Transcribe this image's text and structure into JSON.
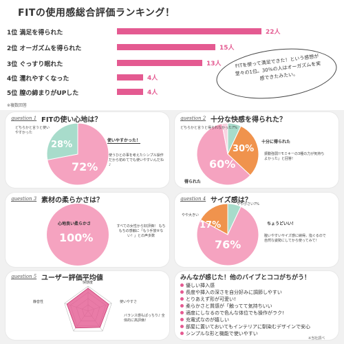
{
  "title": "FITの使用感総合評価ランキング！",
  "ranking": [
    {
      "label": "1位  満足を得られた",
      "value": "22人",
      "count": 22
    },
    {
      "label": "2位  オーガズムを得られた",
      "value": "15人",
      "count": 15
    },
    {
      "label": "3位  ぐっすり眠れた",
      "value": "13人",
      "count": 13
    },
    {
      "label": "4位  濡れやすくなった",
      "value": "4人",
      "count": 4
    },
    {
      "label": "5位  膣の締まりがUPした",
      "value": "4人",
      "count": 4
    }
  ],
  "ranking_note": "※複数回答",
  "bubble_text": "FITを使って満足できた！という感想が堂々の1位。30％の人はオーガズムを実感できたみたい。",
  "q1": {
    "tag": "question 1",
    "title": "FITの使い心地は？",
    "label_small": "どちらかと言うと使いやすかった",
    "label_main": "使いやすかった！",
    "comment": "使うひとの事を考えたシンプル操作だから初めてでも使いやすいんだね♪",
    "pct_a": "28%",
    "pct_b": "72%"
  },
  "q2": {
    "tag": "question 2",
    "title": "十分な快感を得られた？",
    "label_a": "どちらかと言うと得られなかった7%",
    "label_b": "十分に得られた",
    "label_c": "得られた",
    "comment": "振動強弱!!モミキーの3種の力が気持ちよかった」と回答!",
    "pct_b": "30%",
    "pct_c": "60%"
  },
  "q3": {
    "tag": "question 3",
    "title": "素材の柔らかさは？",
    "label": "心地良い柔らかさ",
    "pct": "100%",
    "comment": "すべての女性から好評価！ もちもちの感触に「もう手放せない！」との声多数"
  },
  "q4": {
    "tag": "question 4",
    "title": "サイズ感は？",
    "label_a": "やや小さい7%",
    "label_b": "やや大きい",
    "label_c": "ちょうどいい！",
    "comment": "膣いやすいサイズ感に納得。指ぐるので自然な姿勢にしてから使ってみて！",
    "pct_b": "17%",
    "pct_c": "76%"
  },
  "q5": {
    "tag": "question 5",
    "title": "ユーザー評価平均値",
    "axes": [
      "快感度",
      "使いやすさ",
      "",
      "",
      "静音性"
    ],
    "comment": "バランス感もぱっちり♪ 全体的に高評価！"
  },
  "voices": {
    "title": "みんなが感じた！他のバイブとココがちがう！",
    "items": [
      "優しい挿入感",
      "長度や挿入の深さを自分好みに調節しやすい",
      "とりあえず形が可愛い!",
      "柔らかさと質感が「触ってて気持ちいい",
      "適度にしなるので色んな体位でも操作がラク!",
      "充電式なのが嬉しい",
      "部屋に置いておいてもインテリアに馴染むデザインで安心",
      "シンプルな形と機能で使いやすい"
    ]
  },
  "source": "※当社調べ",
  "colors": {
    "pink": "#e45a91",
    "light_pink": "#f5a3c0",
    "mint": "#a8dccb",
    "orange": "#f0934d"
  }
}
